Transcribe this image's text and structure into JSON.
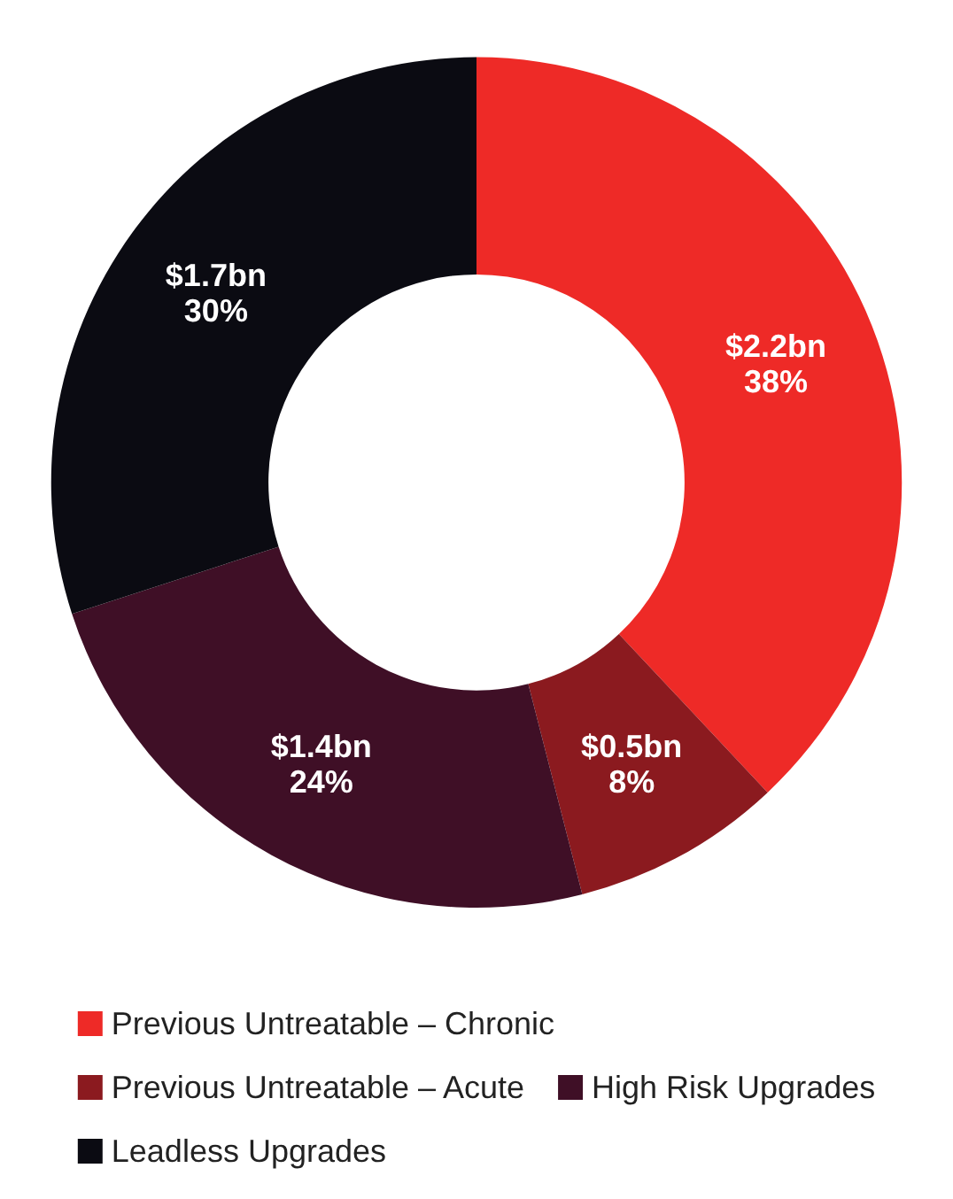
{
  "chart_data": {
    "type": "donut",
    "categories": [
      "Previous Untreatable – Chronic",
      "Previous Untreatable – Acute",
      "High Risk Upgrades",
      "Leadless Upgrades"
    ],
    "values": [
      38,
      8,
      24,
      30
    ],
    "value_labels": [
      "$2.2bn\n38%",
      "$0.5bn\n8%",
      "$1.4bn\n24%",
      "$1.7bn\n30%"
    ],
    "colors": [
      "#ee2a27",
      "#8b1a1f",
      "#3f0f26",
      "#0b0b12"
    ],
    "legend": "bottom"
  }
}
